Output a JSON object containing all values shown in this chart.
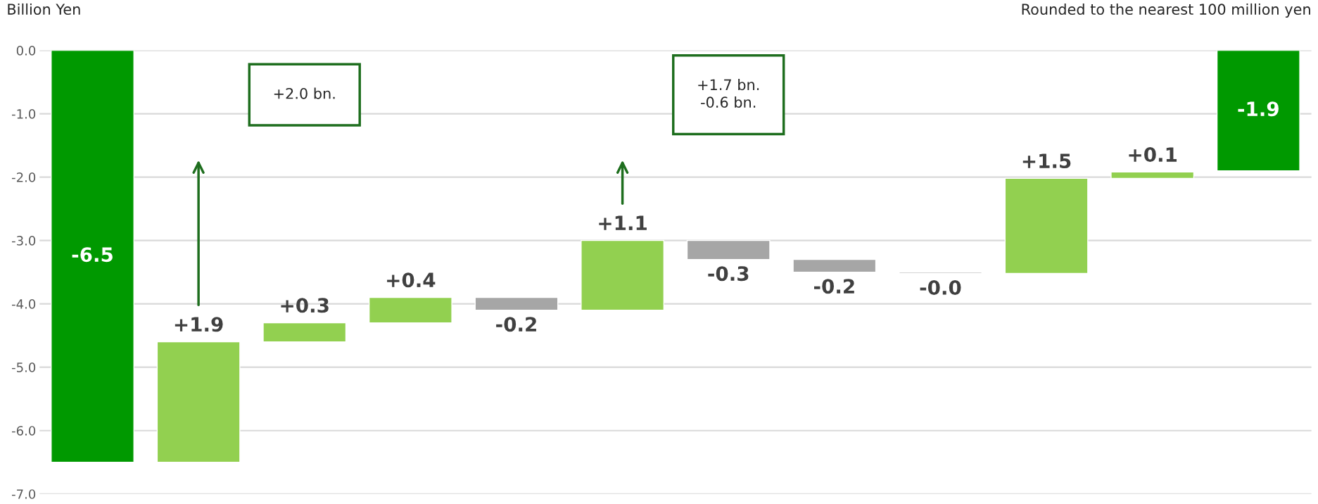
{
  "chart_data": {
    "type": "bar",
    "ylabel": "Billion Yen",
    "categories": [
      null,
      null,
      null,
      null,
      null,
      null,
      null,
      null,
      null,
      null,
      null,
      null
    ],
    "values": [
      -6.5,
      1.9,
      0.3,
      0.4,
      -0.2,
      1.1,
      -0.3,
      -0.2,
      -0.02,
      1.5,
      0.1,
      -1.9
    ],
    "base": [
      0,
      -6.5,
      -4.6,
      -4.3,
      -3.9,
      -4.1,
      -3.0,
      -3.3,
      -3.5,
      -3.52,
      -2.02,
      0
    ],
    "colors": [
      "#009900",
      "#92d050",
      "#92d050",
      "#92d050",
      "#a6a6a6",
      "#92d050",
      "#a6a6a6",
      "#a6a6a6",
      "#a6a6a6",
      "#92d050",
      "#92d050",
      "#009900"
    ],
    "value_labels": [
      "-6.5",
      "+1.9",
      "+0.3",
      "+0.4",
      "-0.2",
      "+1.1",
      "-0.3",
      "-0.2",
      "-0.0",
      "+1.5",
      "+0.1",
      "-1.9"
    ],
    "ylim": [
      -7.0,
      0.0
    ],
    "yticks": [
      {
        "value": 0,
        "label": "0.0"
      },
      {
        "value": -1,
        "label": "-1.0"
      },
      {
        "value": -2,
        "label": "-2.0"
      },
      {
        "value": -3,
        "label": "-3.0"
      },
      {
        "value": -4,
        "label": "-4.0"
      },
      {
        "value": -5,
        "label": "-5.0"
      },
      {
        "value": -6,
        "label": "-6.0"
      },
      {
        "value": -7,
        "label": "-7.0"
      }
    ],
    "grid": "y",
    "annotations": [
      "Rounded to the nearest 100 million yen",
      "+2.0 bn.",
      "+1.7 bn.\n-0.6 bn."
    ]
  }
}
